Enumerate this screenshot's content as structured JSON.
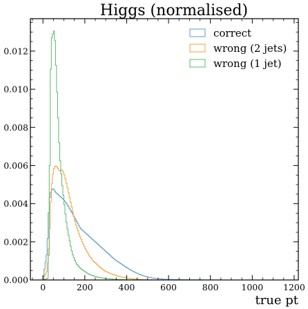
{
  "chart_data": {
    "type": "histogram",
    "title": "Higgs (normalised)",
    "xlabel": "true pt",
    "ylabel": "",
    "xlim": [
      -60,
      1220
    ],
    "ylim": [
      0,
      0.0137
    ],
    "xticks": [
      0,
      200,
      400,
      600,
      800,
      1000,
      1200
    ],
    "yticks": [
      0.0,
      0.002,
      0.004,
      0.006,
      0.008,
      0.01,
      0.012
    ],
    "ytick_labels": [
      "0.000",
      "0.002",
      "0.004",
      "0.006",
      "0.008",
      "0.010",
      "0.012"
    ],
    "grid": false,
    "legend_position": "top-right",
    "series": [
      {
        "name": "correct",
        "color": "#5b9bc6",
        "points": [
          [
            0,
            0
          ],
          [
            20,
            0.0015
          ],
          [
            30,
            0.0042
          ],
          [
            40,
            0.0047
          ],
          [
            50,
            0.0048
          ],
          [
            60,
            0.0046
          ],
          [
            80,
            0.0044
          ],
          [
            100,
            0.0042
          ],
          [
            120,
            0.0039
          ],
          [
            140,
            0.0035
          ],
          [
            160,
            0.0031
          ],
          [
            180,
            0.0027
          ],
          [
            200,
            0.0025
          ],
          [
            220,
            0.0023
          ],
          [
            240,
            0.0021
          ],
          [
            260,
            0.0019
          ],
          [
            280,
            0.0017
          ],
          [
            300,
            0.0015
          ],
          [
            320,
            0.0013
          ],
          [
            340,
            0.0011
          ],
          [
            360,
            0.00095
          ],
          [
            380,
            0.0008
          ],
          [
            400,
            0.00065
          ],
          [
            420,
            0.00052
          ],
          [
            440,
            0.0004
          ],
          [
            460,
            0.0003
          ],
          [
            480,
            0.00022
          ],
          [
            500,
            0.00016
          ],
          [
            520,
            0.00011
          ],
          [
            540,
            8e-05
          ],
          [
            560,
            6e-05
          ],
          [
            580,
            4e-05
          ],
          [
            600,
            3e-05
          ],
          [
            640,
            2e-05
          ],
          [
            700,
            1e-05
          ],
          [
            800,
            5e-06
          ],
          [
            900,
            0
          ],
          [
            1200,
            0
          ]
        ]
      },
      {
        "name": "wrong (2 jets)",
        "color": "#f0a23c",
        "points": [
          [
            0,
            0
          ],
          [
            20,
            0.0005
          ],
          [
            30,
            0.002
          ],
          [
            40,
            0.0048
          ],
          [
            50,
            0.0058
          ],
          [
            60,
            0.006
          ],
          [
            70,
            0.0059
          ],
          [
            80,
            0.0057
          ],
          [
            90,
            0.0058
          ],
          [
            100,
            0.0056
          ],
          [
            110,
            0.0052
          ],
          [
            120,
            0.0047
          ],
          [
            130,
            0.0042
          ],
          [
            140,
            0.0037
          ],
          [
            150,
            0.0032
          ],
          [
            160,
            0.0028
          ],
          [
            180,
            0.0022
          ],
          [
            200,
            0.0017
          ],
          [
            220,
            0.0013
          ],
          [
            240,
            0.001
          ],
          [
            260,
            0.0008
          ],
          [
            280,
            0.0006
          ],
          [
            300,
            0.00045
          ],
          [
            320,
            0.00035
          ],
          [
            340,
            0.00027
          ],
          [
            360,
            0.0002
          ],
          [
            380,
            0.00014
          ],
          [
            400,
            0.0001
          ],
          [
            440,
            5e-05
          ],
          [
            480,
            2e-05
          ],
          [
            560,
            5e-06
          ],
          [
            700,
            0
          ],
          [
            1200,
            0
          ]
        ]
      },
      {
        "name": "wrong (1 jet)",
        "color": "#5cb86a",
        "points": [
          [
            0,
            0
          ],
          [
            25,
            0.0001
          ],
          [
            30,
            0.0025
          ],
          [
            35,
            0.0095
          ],
          [
            40,
            0.0126
          ],
          [
            45,
            0.0128
          ],
          [
            50,
            0.013
          ],
          [
            55,
            0.0131
          ],
          [
            60,
            0.012
          ],
          [
            65,
            0.0105
          ],
          [
            70,
            0.0092
          ],
          [
            75,
            0.0078
          ],
          [
            80,
            0.0066
          ],
          [
            90,
            0.0052
          ],
          [
            100,
            0.0042
          ],
          [
            110,
            0.0032
          ],
          [
            120,
            0.0025
          ],
          [
            130,
            0.0019
          ],
          [
            140,
            0.0014
          ],
          [
            150,
            0.0011
          ],
          [
            160,
            0.00085
          ],
          [
            180,
            0.0006
          ],
          [
            200,
            0.00045
          ],
          [
            220,
            0.0003
          ],
          [
            240,
            0.00022
          ],
          [
            260,
            0.00015
          ],
          [
            300,
            8e-05
          ],
          [
            340,
            4e-05
          ],
          [
            400,
            1e-05
          ],
          [
            500,
            0
          ],
          [
            1200,
            0
          ]
        ]
      }
    ]
  }
}
